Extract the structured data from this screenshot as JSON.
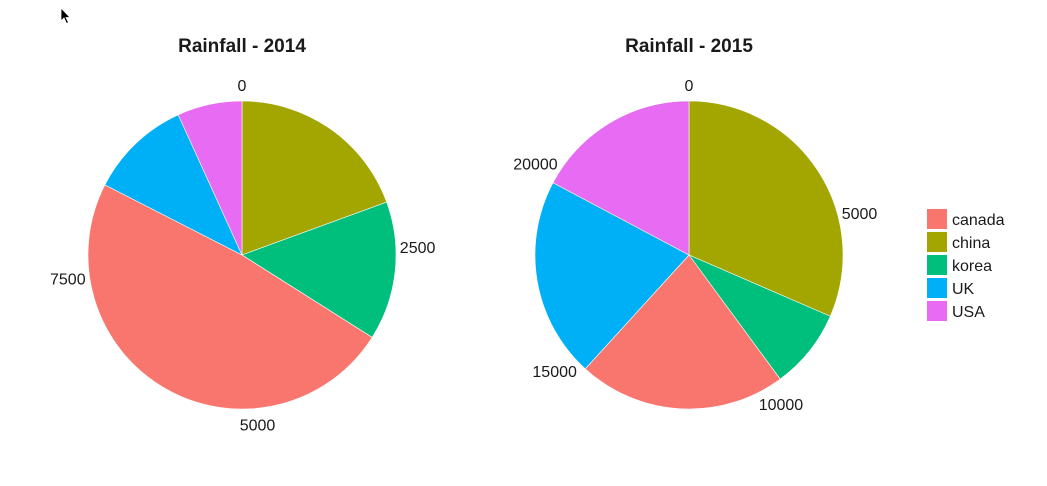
{
  "colors": {
    "canada": "#F8766D",
    "china": "#A3A500",
    "korea": "#00BF7D",
    "UK": "#00B0F6",
    "USA": "#E76BF3"
  },
  "legend": {
    "items": [
      "canada",
      "china",
      "korea",
      "UK",
      "USA"
    ]
  },
  "chart_data": [
    {
      "type": "pie",
      "title": "Rainfall - 2014",
      "slices": [
        {
          "label": "china",
          "value": 2000
        },
        {
          "label": "korea",
          "value": 1500
        },
        {
          "label": "canada",
          "value": 5000
        },
        {
          "label": "UK",
          "value": 1100
        },
        {
          "label": "USA",
          "value": 700
        }
      ],
      "total": 10300,
      "tick_labels": [
        "0",
        "2500",
        "5000",
        "7500"
      ],
      "tick_values": [
        0,
        2500,
        5000,
        7500
      ]
    },
    {
      "type": "pie",
      "title": "Rainfall - 2015",
      "slices": [
        {
          "label": "china",
          "value": 7500
        },
        {
          "label": "korea",
          "value": 2000
        },
        {
          "label": "canada",
          "value": 5200
        },
        {
          "label": "UK",
          "value": 5000
        },
        {
          "label": "USA",
          "value": 4100
        }
      ],
      "total": 23800,
      "tick_labels": [
        "0",
        "5000",
        "10000",
        "15000",
        "20000"
      ],
      "tick_values": [
        0,
        5000,
        10000,
        15000,
        20000
      ]
    }
  ]
}
